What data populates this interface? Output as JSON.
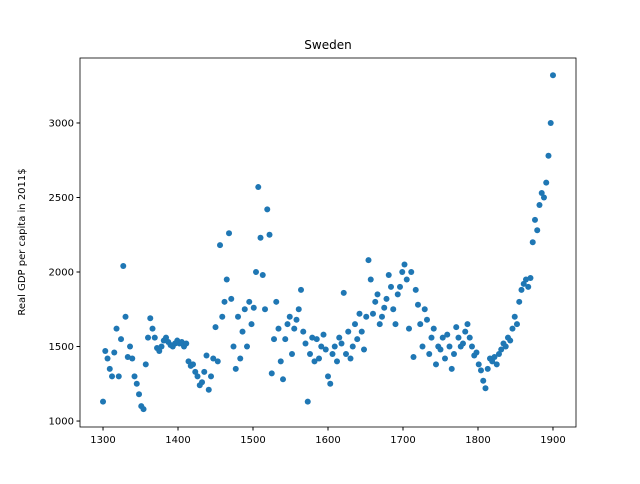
{
  "chart_data": {
    "type": "scatter",
    "title": "Sweden",
    "y_label": "Real GDP per capita in 2011$",
    "x": [
      1300,
      1303,
      1306,
      1309,
      1312,
      1315,
      1318,
      1321,
      1324,
      1327,
      1330,
      1333,
      1336,
      1339,
      1342,
      1345,
      1348,
      1351,
      1354,
      1357,
      1360,
      1363,
      1366,
      1369,
      1372,
      1375,
      1378,
      1381,
      1384,
      1387,
      1390,
      1393,
      1396,
      1399,
      1402,
      1405,
      1408,
      1411,
      1414,
      1417,
      1420,
      1423,
      1426,
      1429,
      1432,
      1435,
      1438,
      1441,
      1444,
      1447,
      1450,
      1453,
      1456,
      1459,
      1462,
      1465,
      1468,
      1471,
      1474,
      1477,
      1480,
      1483,
      1486,
      1489,
      1492,
      1495,
      1498,
      1501,
      1504,
      1507,
      1510,
      1513,
      1516,
      1519,
      1522,
      1525,
      1528,
      1531,
      1534,
      1537,
      1540,
      1543,
      1546,
      1549,
      1552,
      1555,
      1558,
      1561,
      1564,
      1567,
      1570,
      1573,
      1576,
      1579,
      1582,
      1585,
      1588,
      1591,
      1594,
      1597,
      1600,
      1603,
      1606,
      1609,
      1612,
      1615,
      1618,
      1621,
      1624,
      1627,
      1630,
      1633,
      1636,
      1639,
      1642,
      1645,
      1648,
      1651,
      1654,
      1657,
      1660,
      1663,
      1666,
      1669,
      1672,
      1675,
      1678,
      1681,
      1684,
      1687,
      1690,
      1693,
      1696,
      1699,
      1702,
      1705,
      1708,
      1711,
      1714,
      1717,
      1720,
      1723,
      1726,
      1729,
      1732,
      1735,
      1738,
      1741,
      1744,
      1747,
      1750,
      1753,
      1756,
      1759,
      1762,
      1765,
      1768,
      1771,
      1774,
      1777,
      1780,
      1783,
      1786,
      1789,
      1792,
      1795,
      1798,
      1801,
      1804,
      1807,
      1810,
      1813,
      1816,
      1819,
      1822,
      1825,
      1828,
      1831,
      1834,
      1837,
      1840,
      1843,
      1846,
      1849,
      1852,
      1855,
      1858,
      1861,
      1864,
      1867,
      1870,
      1873,
      1876,
      1879,
      1882,
      1885,
      1888,
      1891,
      1894,
      1897,
      1900
    ],
    "series": [
      {
        "color": "#1f77b4",
        "values": [
          1130,
          1470,
          1420,
          1350,
          1300,
          1460,
          1620,
          1300,
          1550,
          2040,
          1700,
          1430,
          1500,
          1420,
          1300,
          1250,
          1180,
          1100,
          1080,
          1380,
          1560,
          1690,
          1620,
          1560,
          1490,
          1470,
          1500,
          1540,
          1560,
          1530,
          1510,
          1500,
          1520,
          1540,
          1520,
          1530,
          1500,
          1520,
          1400,
          1370,
          1380,
          1330,
          1300,
          1240,
          1260,
          1330,
          1440,
          1210,
          1300,
          1420,
          1630,
          1400,
          2180,
          1700,
          1800,
          1950,
          2260,
          1820,
          1500,
          1350,
          1700,
          1420,
          1600,
          1750,
          1500,
          1800,
          1650,
          1760,
          2000,
          2570,
          2230,
          1980,
          1750,
          2420,
          2250,
          1320,
          1550,
          1800,
          1620,
          1400,
          1280,
          1550,
          1650,
          1700,
          1450,
          1620,
          1680,
          1750,
          1880,
          1600,
          1520,
          1130,
          1450,
          1560,
          1400,
          1550,
          1420,
          1500,
          1580,
          1480,
          1300,
          1250,
          1450,
          1500,
          1400,
          1560,
          1520,
          1860,
          1450,
          1600,
          1420,
          1500,
          1650,
          1550,
          1720,
          1600,
          1480,
          1700,
          2080,
          1950,
          1720,
          1800,
          1850,
          1650,
          1700,
          1760,
          1820,
          1980,
          1900,
          1750,
          1650,
          1850,
          1900,
          2000,
          2050,
          1950,
          1620,
          2000,
          1430,
          1880,
          1780,
          1650,
          1500,
          1750,
          1680,
          1450,
          1560,
          1620,
          1380,
          1500,
          1480,
          1560,
          1420,
          1580,
          1500,
          1350,
          1450,
          1630,
          1560,
          1500,
          1520,
          1600,
          1650,
          1560,
          1500,
          1440,
          1460,
          1380,
          1340,
          1270,
          1220,
          1350,
          1420,
          1400,
          1430,
          1380,
          1450,
          1480,
          1520,
          1500,
          1560,
          1540,
          1620,
          1700,
          1650,
          1800,
          1880,
          1920,
          1950,
          1900,
          1960,
          2200,
          2350,
          2280,
          2450,
          2530,
          2500,
          2600,
          2780,
          3000,
          3320
        ]
      }
    ],
    "xlim": [
      1269.3,
      1930.7
    ],
    "ylim": [
      960,
      3436
    ],
    "xticks": [
      1300,
      1400,
      1500,
      1600,
      1700,
      1800,
      1900
    ],
    "yticks": [
      1000,
      1500,
      2000,
      2500,
      3000
    ]
  }
}
